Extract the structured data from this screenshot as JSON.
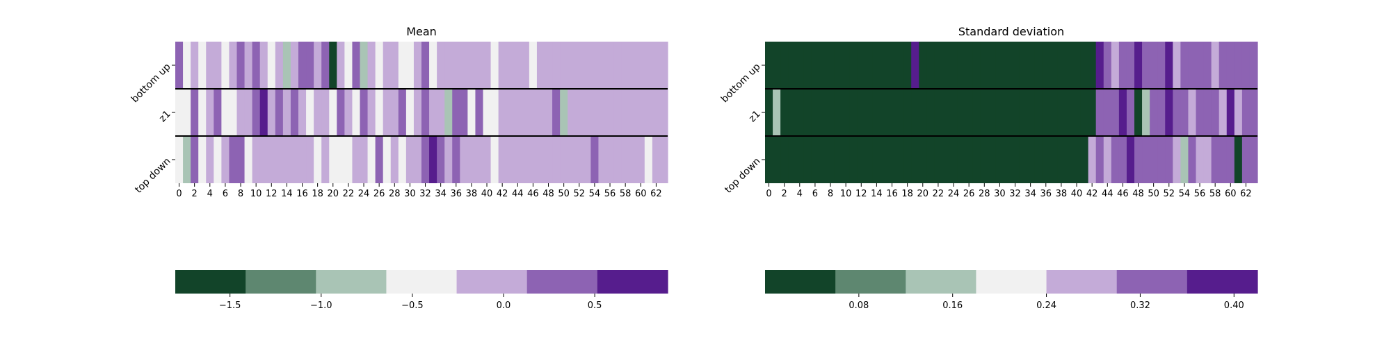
{
  "palette": {
    "c0": "#124429",
    "c1": "#5e8770",
    "c2": "#a9c4b5",
    "c3": "#f1f1f1",
    "c4": "#c4abd8",
    "c5": "#8d63b3",
    "c6": "#561d8d"
  },
  "chart_data": [
    {
      "type": "heatmap",
      "title": "Mean",
      "rows": [
        "bottom up",
        "z1",
        "top down"
      ],
      "x_ticks": [
        "0",
        "2",
        "4",
        "6",
        "8",
        "10",
        "12",
        "14",
        "16",
        "18",
        "20",
        "22",
        "24",
        "26",
        "28",
        "30",
        "32",
        "34",
        "36",
        "38",
        "40",
        "42",
        "44",
        "46",
        "48",
        "50",
        "52",
        "54",
        "56",
        "58",
        "60",
        "62"
      ],
      "n_columns": 64,
      "values": [
        [
          0.4,
          -0.4,
          0.0,
          -0.4,
          0.0,
          0.0,
          -0.4,
          0.0,
          0.4,
          0.0,
          0.4,
          0.0,
          -0.4,
          0.0,
          -0.8,
          0.0,
          0.4,
          0.4,
          0.0,
          0.4,
          -1.6,
          0.0,
          -0.4,
          0.4,
          -0.8,
          0.0,
          -0.4,
          0.0,
          0.0,
          -0.4,
          -0.4,
          0.0,
          0.4,
          -0.4,
          0.0,
          0.0,
          0.0,
          0.0,
          0.0,
          0.0,
          0.0,
          -0.4,
          0.0,
          0.0,
          0.0,
          0.0,
          -0.4,
          0.0,
          0.0,
          0.0,
          0.0,
          0.0,
          0.0,
          0.0,
          0.0,
          0.0,
          0.0,
          0.0,
          0.0,
          0.0,
          0.0,
          0.0,
          0.0,
          0.0
        ],
        [
          -0.4,
          -0.4,
          0.4,
          -0.4,
          0.0,
          0.4,
          -0.4,
          -0.4,
          0.0,
          0.0,
          0.4,
          0.8,
          0.0,
          0.4,
          0.0,
          0.4,
          0.0,
          -0.4,
          0.0,
          0.0,
          -0.4,
          0.4,
          0.0,
          -0.4,
          0.4,
          0.0,
          -0.4,
          0.0,
          0.0,
          0.4,
          -0.4,
          0.0,
          0.4,
          0.0,
          0.0,
          -0.8,
          0.4,
          0.4,
          -0.4,
          0.4,
          -0.4,
          -0.4,
          0.0,
          0.0,
          0.0,
          0.0,
          0.0,
          0.0,
          0.0,
          0.4,
          -0.8,
          0.0,
          0.0,
          0.0,
          0.0,
          0.0,
          0.0,
          0.0,
          0.0,
          0.0,
          0.0,
          0.0,
          0.0,
          0.0
        ],
        [
          -0.4,
          -0.8,
          0.4,
          -0.4,
          0.0,
          -0.4,
          0.0,
          0.4,
          0.4,
          -0.4,
          0.0,
          0.0,
          0.0,
          0.0,
          0.0,
          0.0,
          0.0,
          0.0,
          -0.4,
          0.0,
          -0.4,
          -0.4,
          -0.4,
          0.0,
          0.0,
          -0.4,
          0.4,
          -0.4,
          0.0,
          -0.4,
          0.0,
          0.0,
          0.4,
          0.8,
          0.4,
          0.0,
          0.4,
          0.0,
          0.0,
          0.0,
          0.0,
          -0.4,
          0.0,
          0.0,
          0.0,
          0.0,
          0.0,
          0.0,
          0.0,
          0.0,
          0.0,
          0.0,
          0.0,
          0.0,
          0.4,
          0.0,
          0.0,
          0.0,
          0.0,
          0.0,
          0.0,
          -0.4,
          0.0,
          0.0
        ]
      ],
      "colorbar": {
        "range": [
          -1.8,
          0.9
        ],
        "ticks": [
          {
            "value": -1.5,
            "label": "−1.5"
          },
          {
            "value": -1.0,
            "label": "−1.0"
          },
          {
            "value": -0.5,
            "label": "−0.5"
          },
          {
            "value": 0.0,
            "label": "0.0"
          },
          {
            "value": 0.5,
            "label": "0.5"
          }
        ]
      }
    },
    {
      "type": "heatmap",
      "title": "Standard deviation",
      "rows": [
        "bottom up",
        "z1",
        "top down"
      ],
      "x_ticks": [
        "0",
        "2",
        "4",
        "6",
        "8",
        "10",
        "12",
        "14",
        "16",
        "18",
        "20",
        "22",
        "24",
        "26",
        "28",
        "30",
        "32",
        "34",
        "36",
        "38",
        "40",
        "42",
        "44",
        "46",
        "48",
        "50",
        "52",
        "54",
        "56",
        "58",
        "60",
        "62"
      ],
      "n_columns": 64,
      "values": [
        [
          0.05,
          0.05,
          0.05,
          0.01,
          0.05,
          0.01,
          0.05,
          0.01,
          0.05,
          0.01,
          0.05,
          0.05,
          0.01,
          0.05,
          0.01,
          0.01,
          0.01,
          0.01,
          0.01,
          0.38,
          0.01,
          0.05,
          0.01,
          0.01,
          0.01,
          0.01,
          0.01,
          0.01,
          0.01,
          0.01,
          0.01,
          0.01,
          0.01,
          0.01,
          0.01,
          0.01,
          0.01,
          0.01,
          0.01,
          0.01,
          0.01,
          0.01,
          0.01,
          0.38,
          0.32,
          0.24,
          0.32,
          0.32,
          0.38,
          0.32,
          0.32,
          0.32,
          0.38,
          0.28,
          0.32,
          0.32,
          0.32,
          0.32,
          0.28,
          0.32,
          0.32,
          0.32,
          0.32,
          0.32
        ],
        [
          0.01,
          0.16,
          0.05,
          0.01,
          0.05,
          0.01,
          0.05,
          0.05,
          0.01,
          0.05,
          0.05,
          0.01,
          0.01,
          0.01,
          0.05,
          0.01,
          0.05,
          0.01,
          0.01,
          0.01,
          0.05,
          0.01,
          0.01,
          0.01,
          0.01,
          0.01,
          0.01,
          0.01,
          0.01,
          0.01,
          0.01,
          0.01,
          0.01,
          0.01,
          0.01,
          0.01,
          0.01,
          0.01,
          0.01,
          0.01,
          0.01,
          0.01,
          0.01,
          0.32,
          0.32,
          0.32,
          0.38,
          0.32,
          0.05,
          0.16,
          0.32,
          0.32,
          0.38,
          0.32,
          0.32,
          0.28,
          0.32,
          0.32,
          0.32,
          0.28,
          0.38,
          0.28,
          0.32,
          0.32
        ],
        [
          0.01,
          0.01,
          0.05,
          0.01,
          0.05,
          0.01,
          0.01,
          0.05,
          0.05,
          0.01,
          0.05,
          0.01,
          0.05,
          0.01,
          0.01,
          0.05,
          0.01,
          0.01,
          0.01,
          0.01,
          0.05,
          0.01,
          0.01,
          0.01,
          0.01,
          0.01,
          0.01,
          0.01,
          0.01,
          0.01,
          0.01,
          0.01,
          0.01,
          0.01,
          0.01,
          0.01,
          0.01,
          0.01,
          0.01,
          0.01,
          0.01,
          0.01,
          0.28,
          0.32,
          0.28,
          0.32,
          0.32,
          0.38,
          0.32,
          0.32,
          0.32,
          0.32,
          0.32,
          0.28,
          0.16,
          0.32,
          0.28,
          0.28,
          0.32,
          0.32,
          0.32,
          0.05,
          0.32,
          0.32
        ]
      ],
      "colorbar": {
        "range": [
          0.0,
          0.42
        ],
        "ticks": [
          {
            "value": 0.08,
            "label": "0.08"
          },
          {
            "value": 0.16,
            "label": "0.16"
          },
          {
            "value": 0.24,
            "label": "0.24"
          },
          {
            "value": 0.32,
            "label": "0.32"
          },
          {
            "value": 0.4,
            "label": "0.40"
          }
        ]
      }
    }
  ]
}
